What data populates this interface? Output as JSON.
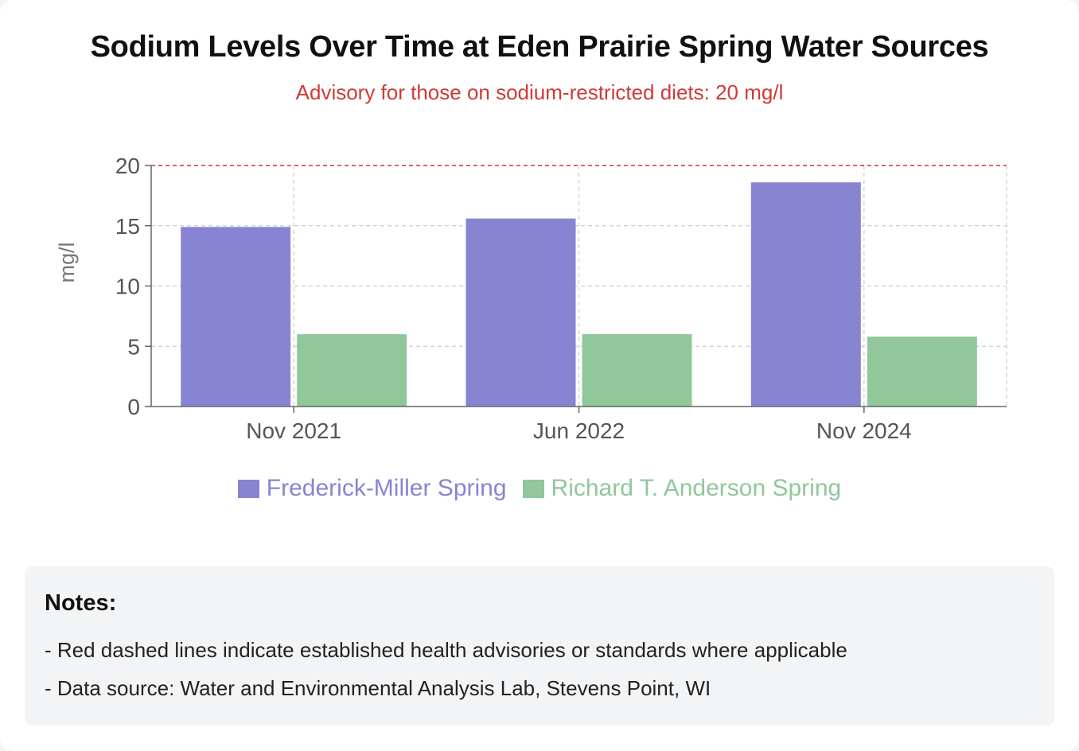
{
  "header": {
    "title": "Sodium Levels Over Time at Eden Prairie Spring Water Sources",
    "subtitle": "Advisory for those on sodium-restricted diets: 20 mg/l"
  },
  "colors": {
    "series_a": "#8884d2",
    "series_b": "#91c79b",
    "advisory": "#d03a36"
  },
  "chart_data": {
    "type": "bar",
    "categories": [
      "Nov 2021",
      "Jun 2022",
      "Nov 2024"
    ],
    "series": [
      {
        "name": "Frederick-Miller Spring",
        "values": [
          14.9,
          15.6,
          18.6
        ]
      },
      {
        "name": "Richard T. Anderson Spring",
        "values": [
          6.0,
          6.0,
          5.8
        ]
      }
    ],
    "ylabel": "mg/l",
    "ylim": [
      0,
      20
    ],
    "yticks": [
      "0",
      "5",
      "10",
      "15",
      "20"
    ],
    "advisory_value": 20,
    "grid": true,
    "legend_position": "bottom"
  },
  "notes": {
    "heading": "Notes:",
    "lines": [
      "- Red dashed lines indicate established health advisories or standards where applicable",
      "- Data source: Water and Environmental Analysis Lab, Stevens Point, WI"
    ]
  }
}
